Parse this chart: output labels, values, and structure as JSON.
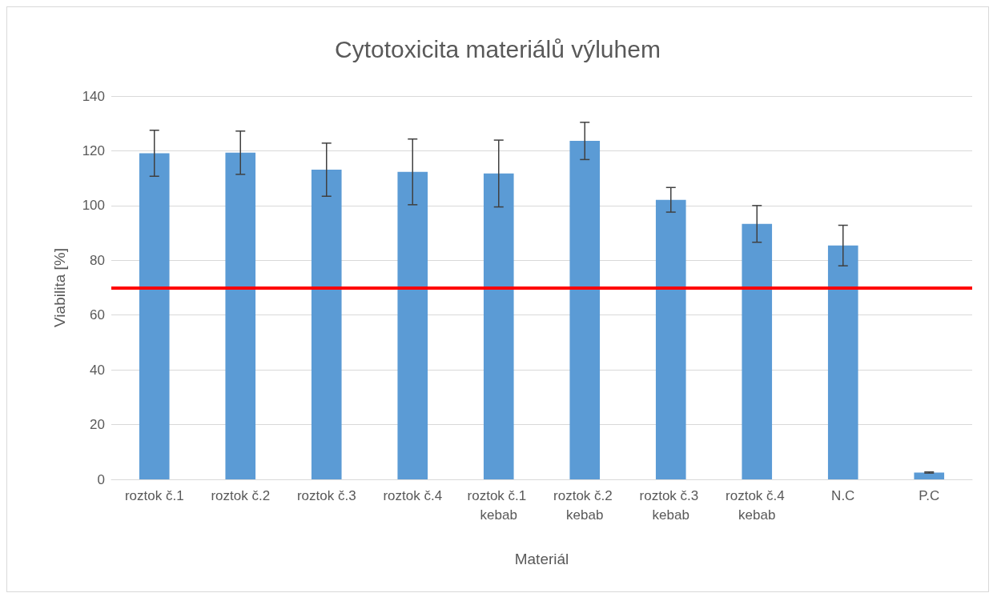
{
  "chart_data": {
    "type": "bar",
    "title": "Cytotoxicita materiálů výluhem",
    "xlabel": "Materiál",
    "ylabel": "Viabilita [%]",
    "categories": [
      "roztok č.1",
      "roztok č.2",
      "roztok č.3",
      "roztok č.4",
      "roztok č.1 kebab",
      "roztok č.2 kebab",
      "roztok č.3 kebab",
      "roztok č.4 kebab",
      "N.C",
      "P.C"
    ],
    "values": [
      119.1,
      119.3,
      113.1,
      112.3,
      111.7,
      123.6,
      102.1,
      93.3,
      85.4,
      2.5
    ],
    "errors": [
      8.4,
      7.9,
      9.7,
      12,
      12.2,
      6.8,
      4.5,
      6.7,
      7.4,
      0.2
    ],
    "color": "#5b9bd5",
    "ylim": [
      0,
      140
    ],
    "yticks": [
      0,
      20,
      40,
      60,
      80,
      100,
      120,
      140
    ],
    "grid": "y",
    "ref_lines": [
      {
        "axis": "y",
        "value": 70,
        "color": "#ff0000"
      }
    ]
  }
}
